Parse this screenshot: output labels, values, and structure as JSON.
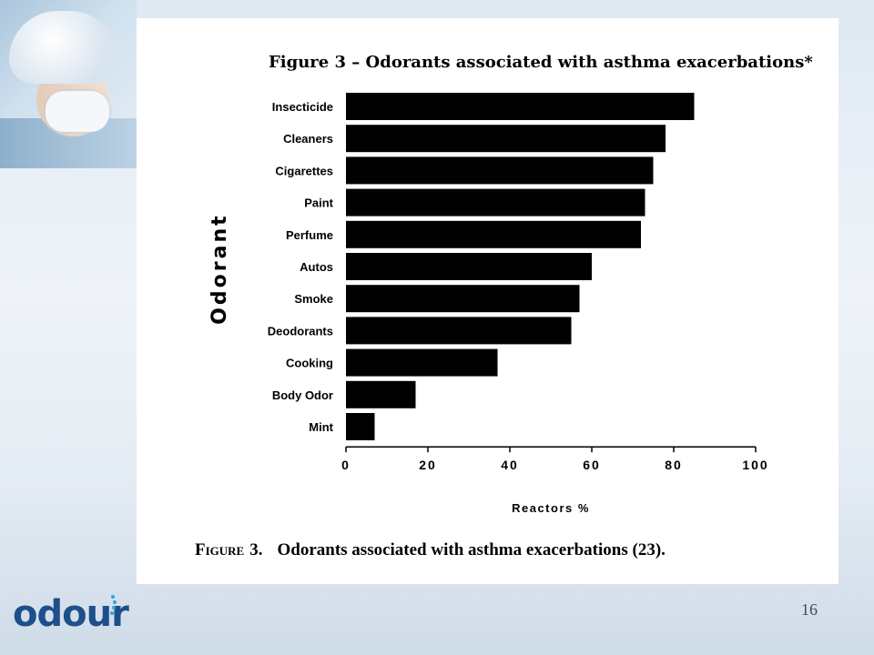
{
  "slide": {
    "logo_text": "odour",
    "page_number": "16",
    "colors": {
      "background": "#e6eef5",
      "panel": "#ffffff",
      "bar": "#000000",
      "logo": "#1d4f8a"
    }
  },
  "figure": {
    "title": "Figure 3 – Odorants associated with asthma exacerbations*",
    "caption_word": "Figure",
    "caption_number": "3.",
    "caption_text": "Odorants associated with asthma exacerbations (23)."
  },
  "chart_data": {
    "type": "bar",
    "orientation": "horizontal",
    "title": "Figure 3 – Odorants associated with asthma exacerbations*",
    "xlabel": "Reactors   %",
    "ylabel": "Odorant",
    "xlim": [
      0,
      100
    ],
    "xticks": [
      0,
      20,
      40,
      60,
      80,
      100
    ],
    "grid": false,
    "categories": [
      "Insecticide",
      "Cleaners",
      "Cigarettes",
      "Paint",
      "Perfume",
      "Autos",
      "Smoke",
      "Deodorants",
      "Cooking",
      "Body Odor",
      "Mint"
    ],
    "values": [
      85,
      78,
      75,
      73,
      72,
      60,
      57,
      55,
      37,
      17,
      7
    ]
  }
}
